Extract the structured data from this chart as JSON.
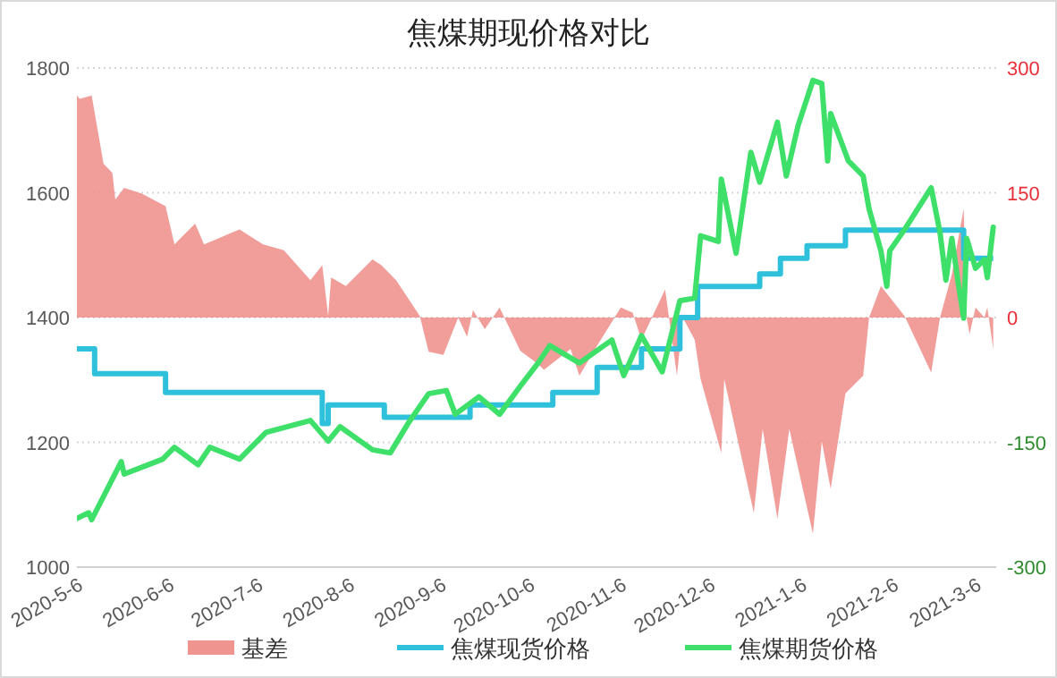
{
  "chart_data": {
    "type": "line",
    "title": "焦煤期现价格对比",
    "xlim": [
      "2020-05-06",
      "2021-03-13"
    ],
    "xticks": [
      {
        "value": "2020-05-06",
        "label": "2020-5-6"
      },
      {
        "value": "2020-06-06",
        "label": "2020-6-6"
      },
      {
        "value": "2020-07-06",
        "label": "2020-7-6"
      },
      {
        "value": "2020-08-06",
        "label": "2020-8-6"
      },
      {
        "value": "2020-09-06",
        "label": "2020-9-6"
      },
      {
        "value": "2020-10-06",
        "label": "2020-10-6"
      },
      {
        "value": "2020-11-06",
        "label": "2020-11-6"
      },
      {
        "value": "2020-12-06",
        "label": "2020-12-6"
      },
      {
        "value": "2021-01-06",
        "label": "2021-1-6"
      },
      {
        "value": "2021-02-06",
        "label": "2021-2-6"
      },
      {
        "value": "2021-03-06",
        "label": "2021-3-6"
      }
    ],
    "ylim": [
      1000,
      1800
    ],
    "yticks": [
      1000,
      1200,
      1400,
      1600,
      1800
    ],
    "y2lim": [
      -300,
      300
    ],
    "y2ticks": [
      -300,
      -150,
      0,
      150,
      300
    ],
    "grid": "y",
    "legend": "bottom",
    "series": [
      {
        "name": "基差",
        "type": "area",
        "axis": "y2",
        "color": "#f09490",
        "x": [
          "2020-05-06",
          "2020-05-07",
          "2020-05-11",
          "2020-05-15",
          "2020-05-18",
          "2020-05-19",
          "2020-05-22",
          "2020-05-28",
          "2020-06-05",
          "2020-06-08",
          "2020-06-15",
          "2020-06-18",
          "2020-06-30",
          "2020-07-08",
          "2020-07-15",
          "2020-07-24",
          "2020-07-28",
          "2020-07-30",
          "2020-07-31",
          "2020-08-05",
          "2020-08-14",
          "2020-08-17",
          "2020-08-22",
          "2020-08-30",
          "2020-09-02",
          "2020-09-07",
          "2020-09-12",
          "2020-09-15",
          "2020-09-17",
          "2020-09-21",
          "2020-09-26",
          "2020-10-03",
          "2020-10-09",
          "2020-10-11",
          "2020-10-20",
          "2020-10-23",
          "2020-10-29",
          "2020-11-06",
          "2020-11-10",
          "2020-11-13",
          "2020-11-21",
          "2020-11-25",
          "2020-11-27",
          "2020-12-01",
          "2020-12-03",
          "2020-12-10",
          "2020-12-11",
          "2020-12-21",
          "2020-12-24",
          "2020-12-29",
          "2021-01-02",
          "2021-01-10",
          "2021-01-13",
          "2021-01-16",
          "2021-01-21",
          "2021-01-27",
          "2021-01-29",
          "2021-02-02",
          "2021-02-10",
          "2021-02-19",
          "2021-02-22",
          "2021-02-26",
          "2021-03-02",
          "2021-03-03",
          "2021-03-04",
          "2021-03-06",
          "2021-03-09",
          "2021-03-10",
          "2021-03-12"
        ],
        "values": [
          267,
          263,
          267,
          185,
          174,
          142,
          156,
          149,
          134,
          88,
          113,
          88,
          106,
          88,
          81,
          45,
          63,
          2,
          48,
          38,
          70,
          63,
          45,
          2,
          -41,
          -45,
          0,
          -23,
          9,
          -14,
          12,
          -40,
          -56,
          -63,
          -38,
          -70,
          -34,
          12,
          6,
          -27,
          34,
          -70,
          0,
          -27,
          -74,
          -163,
          -74,
          -235,
          -134,
          -242,
          -134,
          -260,
          -149,
          -206,
          -91,
          -70,
          0,
          38,
          2,
          -66,
          0,
          52,
          131,
          0,
          -20,
          12,
          0,
          12,
          -38
        ]
      },
      {
        "name": "焦煤现货价格",
        "type": "step",
        "color": "#2fc0dc",
        "x": [
          "2020-05-06",
          "2020-05-12",
          "2020-06-05",
          "2020-07-28",
          "2020-07-30",
          "2020-08-18",
          "2020-09-16",
          "2020-10-14",
          "2020-10-29",
          "2020-11-13",
          "2020-11-26",
          "2020-12-02",
          "2020-12-23",
          "2020-12-30",
          "2021-01-08",
          "2021-01-21",
          "2021-03-02",
          "2021-03-12"
        ],
        "values": [
          1350,
          1310,
          1280,
          1230,
          1260,
          1240,
          1260,
          1280,
          1320,
          1350,
          1400,
          1450,
          1470,
          1495,
          1515,
          1540,
          1495,
          1495
        ]
      },
      {
        "name": "焦煤期货价格",
        "color": "#3ee06a",
        "x": [
          "2020-05-06",
          "2020-05-10",
          "2020-05-11",
          "2020-05-18",
          "2020-05-21",
          "2020-05-22",
          "2020-06-04",
          "2020-06-08",
          "2020-06-16",
          "2020-06-20",
          "2020-06-30",
          "2020-07-09",
          "2020-07-24",
          "2020-07-30",
          "2020-08-03",
          "2020-08-14",
          "2020-08-20",
          "2020-08-26",
          "2020-09-02",
          "2020-09-08",
          "2020-09-11",
          "2020-09-19",
          "2020-09-26",
          "2020-10-03",
          "2020-10-09",
          "2020-10-13",
          "2020-10-23",
          "2020-11-03",
          "2020-11-07",
          "2020-11-13",
          "2020-11-20",
          "2020-11-26",
          "2020-12-01",
          "2020-12-03",
          "2020-12-09",
          "2020-12-10",
          "2020-12-15",
          "2020-12-20",
          "2020-12-23",
          "2020-12-29",
          "2021-01-01",
          "2021-01-05",
          "2021-01-10",
          "2021-01-13",
          "2021-01-15",
          "2021-01-16",
          "2021-01-22",
          "2021-01-27",
          "2021-01-29",
          "2021-02-02",
          "2021-02-04",
          "2021-02-05",
          "2021-02-10",
          "2021-02-19",
          "2021-02-22",
          "2021-02-24",
          "2021-02-26",
          "2021-02-28",
          "2021-03-02",
          "2021-03-03",
          "2021-03-06",
          "2021-03-09",
          "2021-03-10",
          "2021-03-12"
        ],
        "values": [
          1078,
          1087,
          1076,
          1141,
          1169,
          1149,
          1173,
          1192,
          1164,
          1192,
          1173,
          1216,
          1235,
          1202,
          1225,
          1188,
          1183,
          1230,
          1278,
          1283,
          1245,
          1273,
          1245,
          1290,
          1327,
          1355,
          1327,
          1364,
          1307,
          1371,
          1313,
          1427,
          1431,
          1531,
          1522,
          1622,
          1503,
          1665,
          1617,
          1713,
          1627,
          1708,
          1780,
          1775,
          1651,
          1727,
          1651,
          1627,
          1574,
          1507,
          1450,
          1507,
          1541,
          1608,
          1536,
          1460,
          1527,
          1460,
          1399,
          1527,
          1479,
          1493,
          1464,
          1545
        ]
      }
    ]
  }
}
